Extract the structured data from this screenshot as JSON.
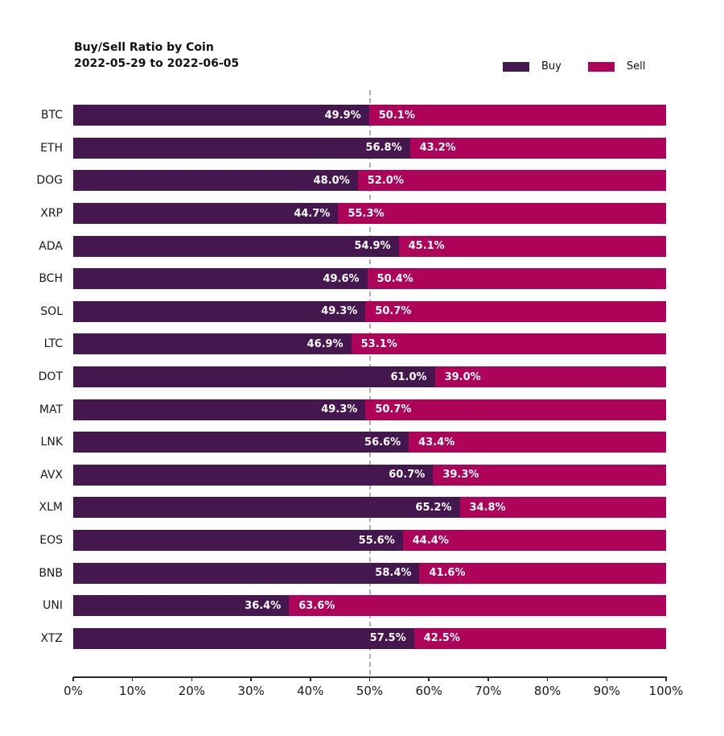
{
  "header": {
    "title_line1": "Buy/Sell Ratio by Coin",
    "title_line2": "2022-05-29 to 2022-06-05"
  },
  "colors": {
    "buy": "#44174e",
    "sell": "#ad0459",
    "reference_line": "#b0b0b0",
    "axis": "#2b2b2b",
    "value_label": "#ffffff"
  },
  "chart_data": {
    "type": "bar",
    "orientation": "horizontal",
    "stacked": true,
    "title": "Buy/Sell Ratio by Coin",
    "subtitle": "2022-05-29 to 2022-06-05",
    "categories": [
      "BTC",
      "ETH",
      "DOG",
      "XRP",
      "ADA",
      "BCH",
      "SOL",
      "LTC",
      "DOT",
      "MAT",
      "LNK",
      "AVX",
      "XLM",
      "EOS",
      "BNB",
      "UNI",
      "XTZ"
    ],
    "series": [
      {
        "name": "Buy",
        "color": "#44174e",
        "values": [
          49.9,
          56.8,
          48.0,
          44.7,
          54.9,
          49.6,
          49.3,
          46.9,
          61.0,
          49.3,
          56.6,
          60.7,
          65.2,
          55.6,
          58.4,
          36.4,
          57.5
        ]
      },
      {
        "name": "Sell",
        "color": "#ad0459",
        "values": [
          50.1,
          43.2,
          52.0,
          55.3,
          45.1,
          50.4,
          50.7,
          53.1,
          39.0,
          50.7,
          43.4,
          39.3,
          34.8,
          44.4,
          41.6,
          63.6,
          42.5
        ]
      }
    ],
    "value_label_format": "{value}%",
    "xlabel": "",
    "ylabel": "",
    "xlim": [
      0,
      100
    ],
    "x_ticks": [
      "0%",
      "10%",
      "20%",
      "30%",
      "40%",
      "50%",
      "60%",
      "70%",
      "80%",
      "90%",
      "100%"
    ],
    "reference_line_x": 50,
    "grid": false,
    "legend_position": "top-right"
  }
}
